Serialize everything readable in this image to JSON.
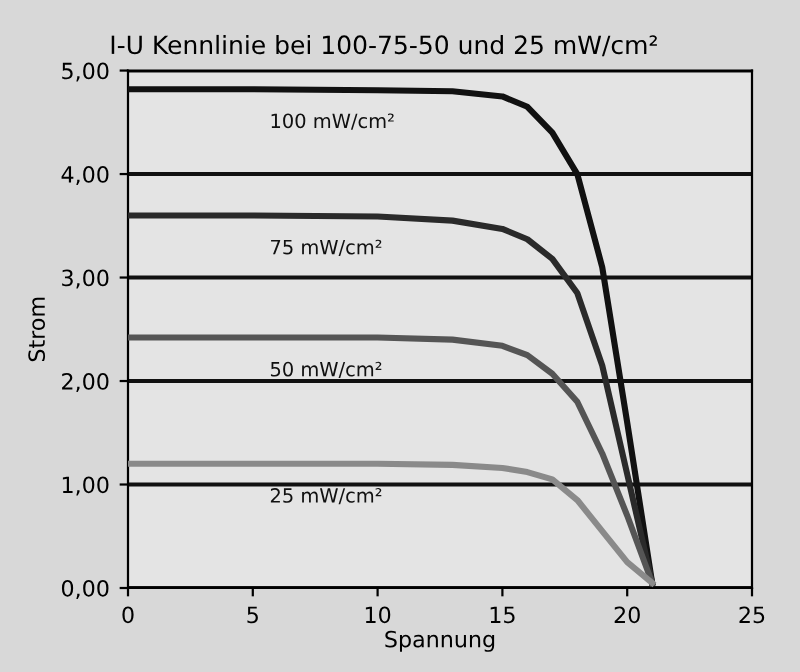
{
  "chart_data": {
    "type": "line",
    "title": "I-U Kennlinie bei 100-75-50 und 25 mW/cm²",
    "xlabel": "Spannung",
    "ylabel": "Strom",
    "x": [
      0,
      5,
      10,
      13,
      15,
      16,
      17,
      18,
      19,
      20,
      21
    ],
    "series": [
      {
        "name": "100 mW/cm²",
        "color": "#111111",
        "values": [
          4.82,
          4.82,
          4.81,
          4.8,
          4.75,
          4.65,
          4.4,
          4.0,
          3.1,
          1.6,
          0.05
        ]
      },
      {
        "name": "75 mW/cm²",
        "color": "#2a2a2a",
        "values": [
          3.6,
          3.6,
          3.59,
          3.55,
          3.47,
          3.37,
          3.18,
          2.85,
          2.15,
          1.1,
          0.05
        ]
      },
      {
        "name": "50 mW/cm²",
        "color": "#555555",
        "values": [
          2.42,
          2.42,
          2.42,
          2.4,
          2.34,
          2.25,
          2.07,
          1.8,
          1.3,
          0.7,
          0.05
        ]
      },
      {
        "name": "25 mW/cm²",
        "color": "#8a8a8a",
        "values": [
          1.2,
          1.2,
          1.2,
          1.19,
          1.16,
          1.12,
          1.05,
          0.85,
          0.55,
          0.25,
          0.05
        ]
      }
    ],
    "xlim": [
      0,
      25
    ],
    "xticks": [
      0,
      5,
      10,
      15,
      20,
      25
    ],
    "ylim": [
      0,
      5
    ],
    "yticks": [
      {
        "value": 0,
        "label": "0,00"
      },
      {
        "value": 1,
        "label": "1,00"
      },
      {
        "value": 2,
        "label": "2,00"
      },
      {
        "value": 3,
        "label": "3,00"
      },
      {
        "value": 4,
        "label": "4,00"
      },
      {
        "value": 5,
        "label": "5,00"
      }
    ],
    "grid": "y"
  }
}
